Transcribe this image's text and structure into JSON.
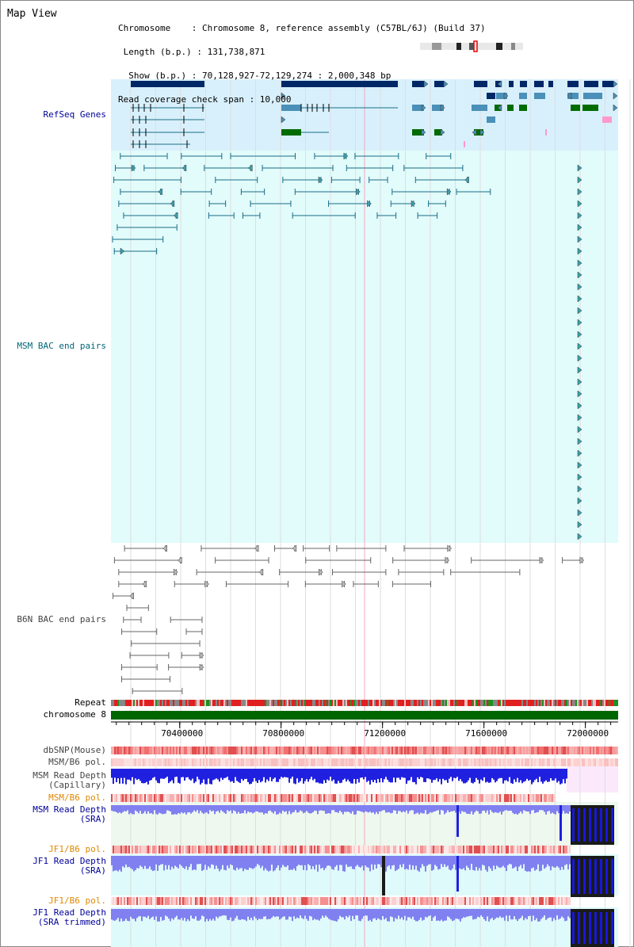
{
  "page": {
    "title": "Map View"
  },
  "header": {
    "lines": [
      "Chromosome    : Chromosome 8, reference assembly (C57BL/6J) (Build 37)",
      " Length (b.p.) : 131,738,871",
      "  Show (b.p.) : 70,128,927-72,129,274 : 2,000,348 bp",
      "Read coverage check span : 10,000"
    ]
  },
  "tracks": {
    "refseq": "RefSeq Genes",
    "msm_bac": "MSM BAC end pairs",
    "b6n_bac": "B6N BAC end pairs",
    "repeat": "Repeat",
    "chromosome": "chromosome 8",
    "dbsnp": "dbSNP(Mouse)",
    "msm_b6_pol_1": "MSM/B6 pol.",
    "msm_depth_cap": "MSM Read Depth\n(Capillary)",
    "msm_b6_pol_2": "MSM/B6 pol.",
    "msm_depth_sra": "MSM Read Depth\n(SRA)",
    "jf1_b6_pol_1": "JF1/B6 pol.",
    "jf1_depth_sra": "JF1 Read Depth\n(SRA)",
    "jf1_b6_pol_2": "JF1/B6 pol.",
    "jf1_depth_trim": "JF1 Read Depth\n(SRA trimmed)"
  },
  "axis": {
    "start": 70128927,
    "end": 72129274,
    "ticks": [
      "70400000",
      "70800000",
      "71200000",
      "71600000",
      "72000000"
    ]
  },
  "colors": {
    "refseq_bg": "#d8f0fc",
    "msm_bg": "#e2fbfb",
    "gene_dark": "#002766",
    "gene_mid": "#4a90b8",
    "gene_green": "#006c00",
    "bac_teal": "#1a6e86",
    "bac_gray": "#666666",
    "chromosome": "#006600",
    "depth_blue": "#2020e0",
    "depth_light": "#8080f0",
    "label_blue": "#000099",
    "label_orange": "#e08800",
    "label_teal": "#006677"
  }
}
